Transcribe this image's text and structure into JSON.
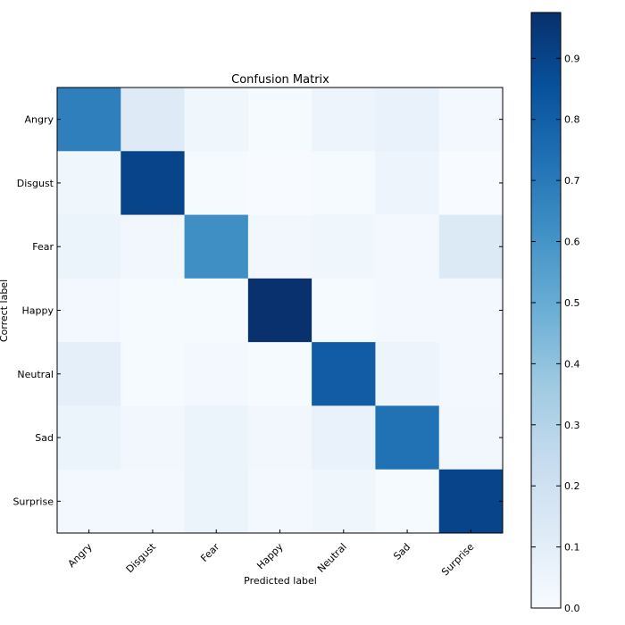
{
  "chart_data": {
    "type": "heatmap",
    "title": "Confusion Matrix",
    "xlabel": "Predicted label",
    "ylabel": "Correct label",
    "categories": [
      "Angry",
      "Disgust",
      "Fear",
      "Happy",
      "Neutral",
      "Sad",
      "Surprise"
    ],
    "rows": [
      "Angry",
      "Disgust",
      "Fear",
      "Happy",
      "Neutral",
      "Sad",
      "Surprise"
    ],
    "columns": [
      "Angry",
      "Disgust",
      "Fear",
      "Happy",
      "Neutral",
      "Sad",
      "Surprise"
    ],
    "values": [
      [
        0.68,
        0.12,
        0.04,
        0.01,
        0.05,
        0.07,
        0.02
      ],
      [
        0.04,
        0.9,
        0.01,
        0.0,
        0.01,
        0.05,
        0.0
      ],
      [
        0.06,
        0.03,
        0.62,
        0.03,
        0.04,
        0.02,
        0.13
      ],
      [
        0.02,
        0.01,
        0.01,
        0.97,
        0.01,
        0.02,
        0.02
      ],
      [
        0.09,
        0.01,
        0.02,
        0.01,
        0.81,
        0.05,
        0.02
      ],
      [
        0.06,
        0.03,
        0.06,
        0.03,
        0.07,
        0.73,
        0.03
      ],
      [
        0.02,
        0.02,
        0.06,
        0.02,
        0.04,
        0.01,
        0.9
      ]
    ],
    "colorbar": {
      "range": [
        0.0,
        0.975
      ],
      "ticks": [
        0.0,
        0.1,
        0.2,
        0.3,
        0.4,
        0.5,
        0.6,
        0.7,
        0.8,
        0.9
      ],
      "tick_labels": [
        "0.0",
        "0.1",
        "0.2",
        "0.3",
        "0.4",
        "0.5",
        "0.6",
        "0.7",
        "0.8",
        "0.9"
      ],
      "colormap": "Blues",
      "color_stops": [
        "#f7fbff",
        "#deebf7",
        "#c6dbef",
        "#9ecae1",
        "#6baed6",
        "#4292c6",
        "#2171b5",
        "#08519c",
        "#08306b"
      ]
    },
    "grid": false
  }
}
